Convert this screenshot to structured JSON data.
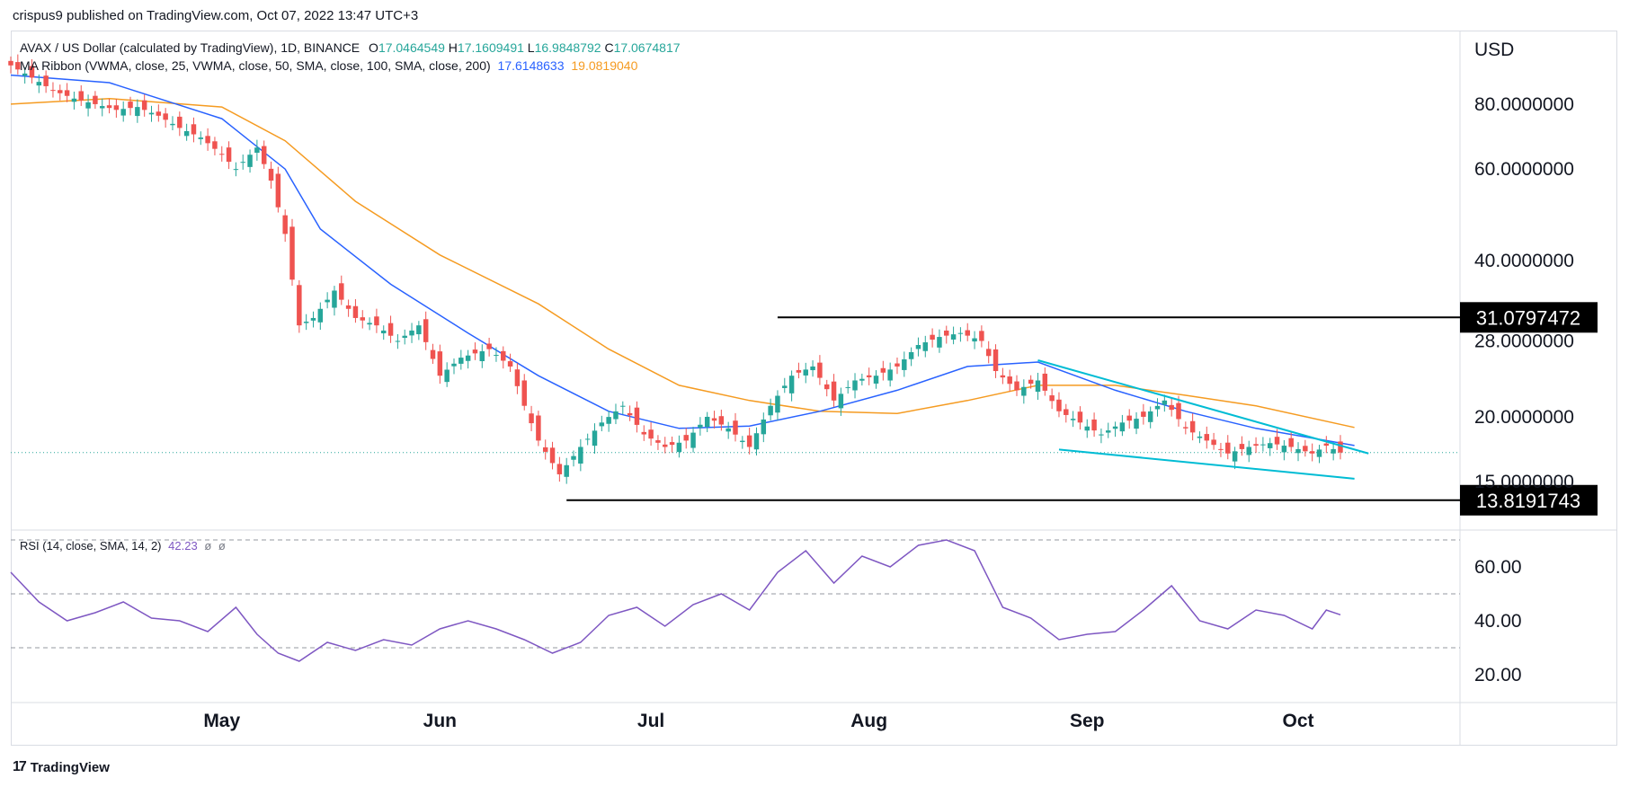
{
  "header": {
    "publisher": "crispus9 published on TradingView.com, Oct 07, 2022 13:47 UTC+3"
  },
  "legend": {
    "symbol": "AVAX / US Dollar (calculated by TradingView), 1D, BINANCE",
    "o_label": "O",
    "o": "17.0464549",
    "h_label": "H",
    "h": "17.1609491",
    "l_label": "L",
    "l": "16.9848792",
    "c_label": "C",
    "c": "17.0674817",
    "ma_label": "MA Ribbon (VWMA, close, 25, VWMA, close, 50, SMA, close, 100, SMA, close, 200)",
    "ma_value_1": "17.6148633",
    "ma_value_2": "19.0819040",
    "rsi_label": "RSI (14, close, SMA, 14, 2)",
    "rsi_value": "42.23",
    "rsi_extra_1": "ø",
    "rsi_extra_2": "ø"
  },
  "footer": {
    "brand": "TradingView"
  },
  "colors": {
    "up": "#26a69a",
    "down": "#ef5350",
    "ma25": "#2962ff",
    "ma50": "#f59b21",
    "rsi": "#7e57c2",
    "trend": "#00bcd4",
    "level": "#000000"
  },
  "chart_data": [
    {
      "type": "candlestick",
      "title": "AVAX / US Dollar (calculated by TradingView), 1D, BINANCE",
      "y_axis_label": "USD",
      "y_scale": "log",
      "ylim": [
        12.3,
        110
      ],
      "y_ticks": [
        15,
        20,
        28,
        40,
        60,
        80
      ],
      "y_tick_labels": [
        "15.0000000",
        "20.0000000",
        "28.0000000",
        "40.0000000",
        "60.0000000",
        "80.0000000"
      ],
      "x_range": [
        "2022-04-01",
        "2022-10-24"
      ],
      "x_ticks": [
        "2022-05-01",
        "2022-06-01",
        "2022-07-01",
        "2022-08-01",
        "2022-09-01",
        "2022-10-01"
      ],
      "x_tick_labels": [
        "May",
        "Jun",
        "Jul",
        "Aug",
        "Sep",
        "Oct"
      ],
      "close_points": [
        [
          "2022-04-01",
          95
        ],
        [
          "2022-04-04",
          90
        ],
        [
          "2022-04-07",
          85
        ],
        [
          "2022-04-10",
          82
        ],
        [
          "2022-04-13",
          80
        ],
        [
          "2022-04-16",
          78
        ],
        [
          "2022-04-19",
          79
        ],
        [
          "2022-04-22",
          76
        ],
        [
          "2022-04-25",
          72
        ],
        [
          "2022-04-28",
          69
        ],
        [
          "2022-05-01",
          64
        ],
        [
          "2022-05-03",
          60
        ],
        [
          "2022-05-06",
          66
        ],
        [
          "2022-05-08",
          57
        ],
        [
          "2022-05-10",
          45
        ],
        [
          "2022-05-12",
          30
        ],
        [
          "2022-05-14",
          31
        ],
        [
          "2022-05-17",
          35
        ],
        [
          "2022-05-20",
          31
        ],
        [
          "2022-05-23",
          30
        ],
        [
          "2022-05-26",
          28
        ],
        [
          "2022-05-29",
          30
        ],
        [
          "2022-06-01",
          24
        ],
        [
          "2022-06-04",
          26
        ],
        [
          "2022-06-08",
          27
        ],
        [
          "2022-06-11",
          25
        ],
        [
          "2022-06-13",
          21
        ],
        [
          "2022-06-15",
          18
        ],
        [
          "2022-06-18",
          15.5
        ],
        [
          "2022-06-21",
          17.5
        ],
        [
          "2022-06-24",
          19.5
        ],
        [
          "2022-06-27",
          21
        ],
        [
          "2022-06-30",
          18.5
        ],
        [
          "2022-07-03",
          17.5
        ],
        [
          "2022-07-06",
          18
        ],
        [
          "2022-07-09",
          20
        ],
        [
          "2022-07-12",
          19
        ],
        [
          "2022-07-15",
          17.5
        ],
        [
          "2022-07-18",
          21
        ],
        [
          "2022-07-21",
          24
        ],
        [
          "2022-07-24",
          25
        ],
        [
          "2022-07-27",
          21.5
        ],
        [
          "2022-07-30",
          23.5
        ],
        [
          "2022-08-02",
          24
        ],
        [
          "2022-08-05",
          25
        ],
        [
          "2022-08-08",
          27.5
        ],
        [
          "2022-08-11",
          28.5
        ],
        [
          "2022-08-14",
          29
        ],
        [
          "2022-08-17",
          28
        ],
        [
          "2022-08-19",
          24.5
        ],
        [
          "2022-08-22",
          22.5
        ],
        [
          "2022-08-25",
          23.5
        ],
        [
          "2022-08-28",
          20.5
        ],
        [
          "2022-08-31",
          19.5
        ],
        [
          "2022-09-03",
          18.5
        ],
        [
          "2022-09-06",
          19.5
        ],
        [
          "2022-09-09",
          20
        ],
        [
          "2022-09-12",
          21.5
        ],
        [
          "2022-09-15",
          19
        ],
        [
          "2022-09-18",
          18
        ],
        [
          "2022-09-21",
          17
        ],
        [
          "2022-09-24",
          17.5
        ],
        [
          "2022-09-27",
          17.8
        ],
        [
          "2022-09-30",
          17.5
        ],
        [
          "2022-10-03",
          17
        ],
        [
          "2022-10-05",
          17.6
        ],
        [
          "2022-10-07",
          17.07
        ]
      ],
      "series": [
        {
          "name": "VWMA 25",
          "points": [
            [
              "2022-04-01",
              91
            ],
            [
              "2022-04-15",
              88
            ],
            [
              "2022-05-01",
              75
            ],
            [
              "2022-05-10",
              60
            ],
            [
              "2022-05-15",
              46
            ],
            [
              "2022-05-25",
              36
            ],
            [
              "2022-06-05",
              29
            ],
            [
              "2022-06-15",
              24
            ],
            [
              "2022-06-25",
              20.5
            ],
            [
              "2022-07-05",
              19
            ],
            [
              "2022-07-15",
              19.2
            ],
            [
              "2022-07-25",
              20.5
            ],
            [
              "2022-08-05",
              22.5
            ],
            [
              "2022-08-15",
              25
            ],
            [
              "2022-08-25",
              25.5
            ],
            [
              "2022-09-05",
              22.5
            ],
            [
              "2022-09-15",
              20.5
            ],
            [
              "2022-09-25",
              19
            ],
            [
              "2022-10-05",
              18
            ],
            [
              "2022-10-09",
              17.61
            ]
          ]
        },
        {
          "name": "VWMA 50",
          "points": [
            [
              "2022-04-01",
              80
            ],
            [
              "2022-04-15",
              82
            ],
            [
              "2022-05-01",
              79
            ],
            [
              "2022-05-10",
              68
            ],
            [
              "2022-05-20",
              52
            ],
            [
              "2022-06-01",
              41
            ],
            [
              "2022-06-15",
              33
            ],
            [
              "2022-06-25",
              27
            ],
            [
              "2022-07-05",
              23
            ],
            [
              "2022-07-15",
              21.5
            ],
            [
              "2022-07-25",
              20.5
            ],
            [
              "2022-08-05",
              20.3
            ],
            [
              "2022-08-15",
              21.5
            ],
            [
              "2022-08-25",
              23
            ],
            [
              "2022-09-05",
              23
            ],
            [
              "2022-09-15",
              22
            ],
            [
              "2022-09-25",
              21
            ],
            [
              "2022-10-09",
              19.08
            ]
          ]
        },
        {
          "name": "RSI",
          "points": [
            [
              "2022-04-01",
              58
            ],
            [
              "2022-04-05",
              47
            ],
            [
              "2022-04-09",
              40
            ],
            [
              "2022-04-13",
              43
            ],
            [
              "2022-04-17",
              47
            ],
            [
              "2022-04-21",
              41
            ],
            [
              "2022-04-25",
              40
            ],
            [
              "2022-04-29",
              36
            ],
            [
              "2022-05-03",
              45
            ],
            [
              "2022-05-06",
              35
            ],
            [
              "2022-05-09",
              28
            ],
            [
              "2022-05-12",
              25
            ],
            [
              "2022-05-16",
              32
            ],
            [
              "2022-05-20",
              29
            ],
            [
              "2022-05-24",
              33
            ],
            [
              "2022-05-28",
              31
            ],
            [
              "2022-06-01",
              37
            ],
            [
              "2022-06-05",
              40
            ],
            [
              "2022-06-09",
              37
            ],
            [
              "2022-06-13",
              33
            ],
            [
              "2022-06-17",
              28
            ],
            [
              "2022-06-21",
              32
            ],
            [
              "2022-06-25",
              42
            ],
            [
              "2022-06-29",
              45
            ],
            [
              "2022-07-03",
              38
            ],
            [
              "2022-07-07",
              46
            ],
            [
              "2022-07-11",
              50
            ],
            [
              "2022-07-15",
              44
            ],
            [
              "2022-07-19",
              58
            ],
            [
              "2022-07-23",
              66
            ],
            [
              "2022-07-27",
              54
            ],
            [
              "2022-07-31",
              64
            ],
            [
              "2022-08-04",
              60
            ],
            [
              "2022-08-08",
              68
            ],
            [
              "2022-08-12",
              70
            ],
            [
              "2022-08-16",
              66
            ],
            [
              "2022-08-20",
              45
            ],
            [
              "2022-08-24",
              41
            ],
            [
              "2022-08-28",
              33
            ],
            [
              "2022-09-01",
              35
            ],
            [
              "2022-09-05",
              36
            ],
            [
              "2022-09-09",
              44
            ],
            [
              "2022-09-13",
              53
            ],
            [
              "2022-09-17",
              40
            ],
            [
              "2022-09-21",
              37
            ],
            [
              "2022-09-25",
              44
            ],
            [
              "2022-09-29",
              42
            ],
            [
              "2022-10-03",
              37
            ],
            [
              "2022-10-05",
              44
            ],
            [
              "2022-10-07",
              42.23
            ]
          ]
        }
      ],
      "annotations": [
        {
          "label": "31.0797472",
          "value": 31.0797472,
          "start": "2022-07-19",
          "type": "horizontal line"
        },
        {
          "label": "13.8191743",
          "value": 13.8191743,
          "start": "2022-06-19",
          "type": "horizontal line"
        },
        {
          "label": "falling wedge upper",
          "points": [
            [
              "2022-08-25",
              25.7
            ],
            [
              "2022-10-11",
              17.0
            ]
          ]
        },
        {
          "label": "falling wedge lower",
          "points": [
            [
              "2022-08-28",
              17.3
            ],
            [
              "2022-10-09",
              15.2
            ]
          ]
        }
      ],
      "last_price": 17.0674817,
      "grid": false
    },
    {
      "type": "line",
      "title": "RSI (14, close, SMA, 14, 2)",
      "ylim": [
        10,
        72
      ],
      "y_ticks": [
        20,
        40,
        60
      ],
      "y_tick_labels": [
        "20.00",
        "40.00",
        "60.00"
      ],
      "bands": [
        30,
        50,
        70
      ],
      "last_value": 42.23
    }
  ]
}
